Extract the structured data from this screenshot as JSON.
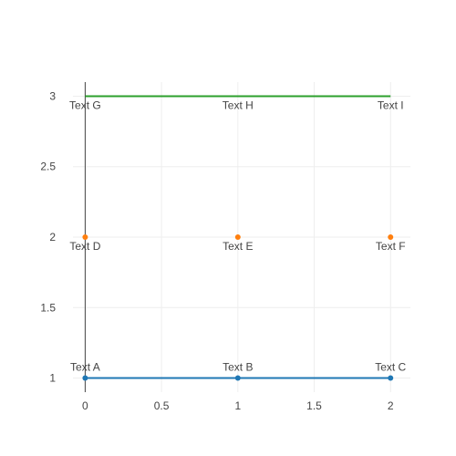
{
  "chart_data": {
    "type": "scatter",
    "title": "",
    "xlabel": "",
    "ylabel": "",
    "xlim": [
      -0.08,
      2.13
    ],
    "ylim": [
      0.9,
      3.1
    ],
    "x_ticks": [
      {
        "value": 0,
        "label": "0"
      },
      {
        "value": 0.5,
        "label": "0.5"
      },
      {
        "value": 1,
        "label": "1"
      },
      {
        "value": 1.5,
        "label": "1.5"
      },
      {
        "value": 2,
        "label": "2"
      }
    ],
    "y_ticks": [
      {
        "value": 1,
        "label": "1"
      },
      {
        "value": 1.5,
        "label": "1.5"
      },
      {
        "value": 2,
        "label": "2"
      },
      {
        "value": 2.5,
        "label": "2.5"
      },
      {
        "value": 3,
        "label": "3"
      }
    ],
    "grid": true,
    "legend": false,
    "series": [
      {
        "mode": "lines+markers+text",
        "color": "#1f77b4",
        "text_position": "top",
        "points": [
          {
            "x": 0,
            "y": 1,
            "text": "Text A"
          },
          {
            "x": 1,
            "y": 1,
            "text": "Text B"
          },
          {
            "x": 2,
            "y": 1,
            "text": "Text C"
          }
        ]
      },
      {
        "mode": "markers+text",
        "color": "#ff7f0e",
        "text_position": "bottom",
        "points": [
          {
            "x": 0,
            "y": 2,
            "text": "Text D"
          },
          {
            "x": 1,
            "y": 2,
            "text": "Text E"
          },
          {
            "x": 2,
            "y": 2,
            "text": "Text F"
          }
        ]
      },
      {
        "mode": "lines+text",
        "color": "#2ca02c",
        "text_position": "bottom",
        "points": [
          {
            "x": 0,
            "y": 3,
            "text": "Text G"
          },
          {
            "x": 1,
            "y": 3,
            "text": "Text H"
          },
          {
            "x": 2,
            "y": 3,
            "text": "Text I"
          }
        ]
      }
    ]
  }
}
